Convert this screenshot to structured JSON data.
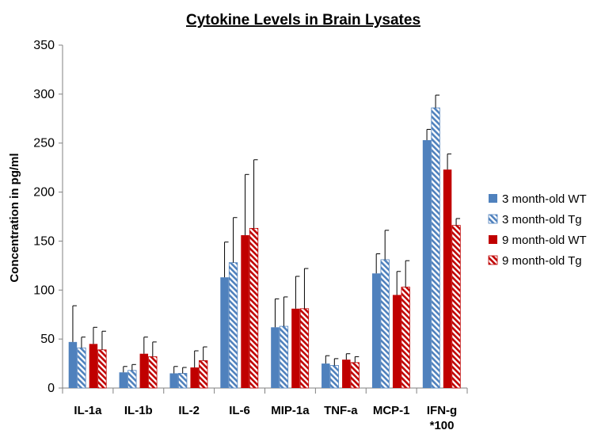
{
  "chart_data": {
    "type": "bar",
    "title": "Cytokine Levels in Brain Lysates",
    "xlabel": "",
    "ylabel": "Concentration  in pg/ml",
    "ylim": [
      0,
      350
    ],
    "yticks": [
      0,
      50,
      100,
      150,
      200,
      250,
      300,
      350
    ],
    "grid": false,
    "legend_position": "right",
    "categories": [
      "IL-1a",
      "IL-1b",
      "IL-2",
      "IL-6",
      "MIP-1a",
      "TNF-a",
      "MCP-1",
      "IFN-g *100"
    ],
    "category_labels": [
      [
        "IL-1a"
      ],
      [
        "IL-1b"
      ],
      [
        "IL-2"
      ],
      [
        "IL-6"
      ],
      [
        "MIP-1a"
      ],
      [
        "TNF-a"
      ],
      [
        "MCP-1"
      ],
      [
        "IFN-g",
        "*100"
      ]
    ],
    "series": [
      {
        "name": "3 month-old WT",
        "color": "#4f81bd",
        "pattern": "solid",
        "values": [
          47,
          16,
          15,
          113,
          62,
          25,
          117,
          253
        ],
        "errors": [
          37,
          6,
          7,
          36,
          29,
          8,
          20,
          11
        ]
      },
      {
        "name": "3 month-old  Tg",
        "color": "#4f81bd",
        "pattern": "hatched",
        "values": [
          41,
          18,
          15,
          128,
          63,
          23,
          131,
          286
        ],
        "errors": [
          11,
          6,
          6,
          46,
          30,
          7,
          30,
          13
        ]
      },
      {
        "name": "9 month-old  WT",
        "color": "#c00000",
        "pattern": "solid",
        "values": [
          45,
          35,
          21,
          156,
          81,
          29,
          95,
          223
        ],
        "errors": [
          17,
          17,
          17,
          62,
          33,
          6,
          24,
          16
        ]
      },
      {
        "name": "9 month-old  Tg",
        "color": "#c00000",
        "pattern": "hatched",
        "values": [
          39,
          32,
          28,
          163,
          81,
          26,
          103,
          166
        ],
        "errors": [
          19,
          15,
          14,
          70,
          41,
          6,
          27,
          7
        ]
      }
    ]
  }
}
